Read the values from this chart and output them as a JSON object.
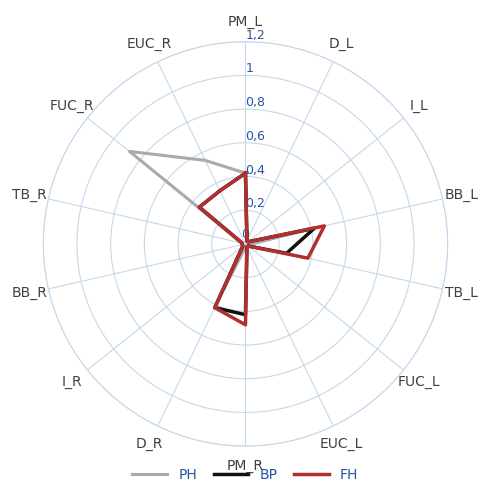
{
  "categories": [
    "PM_L",
    "D_L",
    "I_L",
    "BB_L",
    "TB_L",
    "FUC_L",
    "EUC_L",
    "PM_R",
    "D_R",
    "I_R",
    "BB_R",
    "TB_R",
    "FUC_R",
    "EUC_R"
  ],
  "series": {
    "PH": [
      0.42,
      0.02,
      0.02,
      0.42,
      0.02,
      0.02,
      0.02,
      0.02,
      0.3,
      0.02,
      0.02,
      0.02,
      0.88,
      0.55
    ],
    "BP": [
      0.42,
      0.02,
      0.02,
      0.42,
      0.25,
      0.02,
      0.02,
      0.42,
      0.42,
      0.02,
      0.02,
      0.02,
      0.35,
      0.35
    ],
    "FH": [
      0.42,
      0.02,
      0.02,
      0.48,
      0.38,
      0.02,
      0.02,
      0.48,
      0.42,
      0.02,
      0.02,
      0.02,
      0.35,
      0.35
    ]
  },
  "colors": {
    "PH": "#aaaaaa",
    "BP": "#111111",
    "FH": "#b03030"
  },
  "linewidths": {
    "PH": 2.2,
    "BP": 2.5,
    "FH": 2.5
  },
  "r_max": 1.2,
  "r_ticks": [
    0.2,
    0.4,
    0.6,
    0.8,
    1.0,
    1.2
  ],
  "tick_labels": [
    "0,2",
    "0,4",
    "0,6",
    "0,8",
    "1",
    "1,2"
  ],
  "zero_label": "0",
  "grid_color": "#c5d8ea",
  "grid_linewidth": 0.8,
  "tick_color": "#2555a0",
  "label_color": "#404040",
  "label_fontsize": 10,
  "tick_fontsize": 9,
  "bg_color": "#ffffff",
  "figsize": [
    4.9,
    5.0
  ],
  "dpi": 100,
  "legend_labels": [
    "PH",
    "BP",
    "FH"
  ],
  "legend_fontsize": 10
}
